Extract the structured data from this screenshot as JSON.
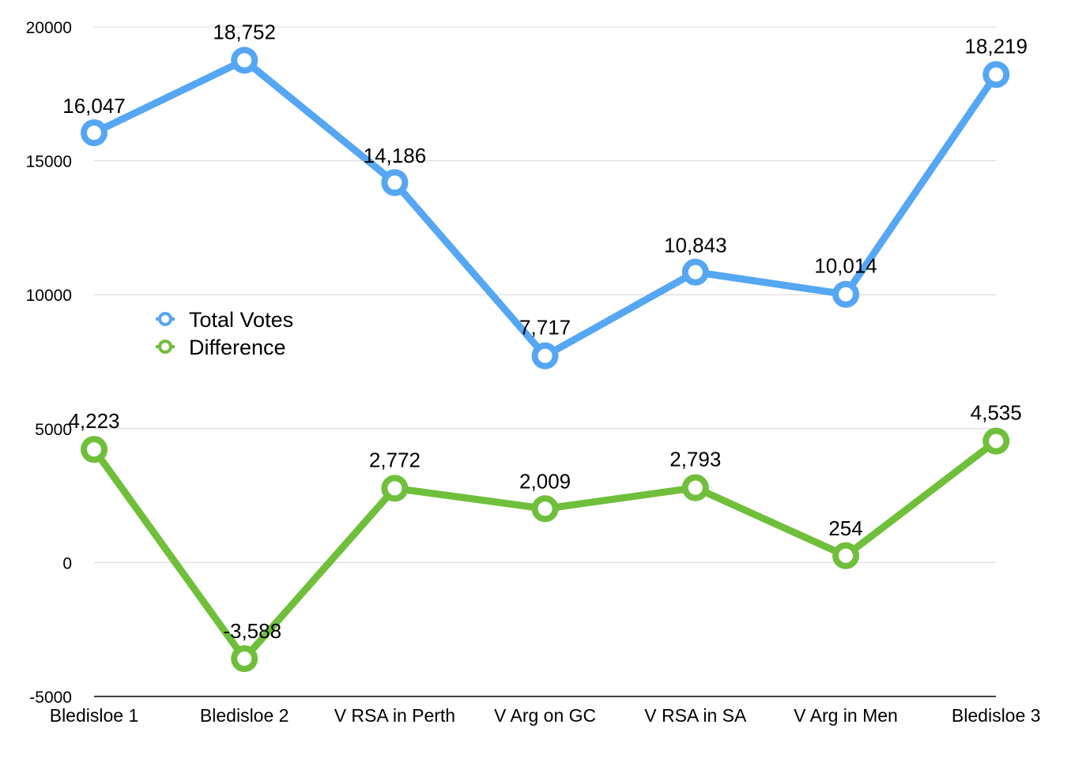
{
  "chart_data": {
    "type": "line",
    "categories": [
      "Bledisloe 1",
      "Bledisloe 2",
      "V RSA in Perth",
      "V Arg on GC",
      "V RSA in SA",
      "V Arg in Men",
      "Bledisloe 3"
    ],
    "series": [
      {
        "name": "Total Votes",
        "color": "#55a6f3",
        "values": [
          16047,
          18752,
          14186,
          7717,
          10843,
          10014,
          18219
        ],
        "labels": [
          "16,047",
          "18,752",
          "14,186",
          "7,717",
          "10,843",
          "10,014",
          "18,219"
        ]
      },
      {
        "name": "Difference",
        "color": "#6fbf3b",
        "values": [
          4223,
          -3588,
          2772,
          2009,
          2793,
          254,
          4535
        ],
        "labels": [
          "4,223",
          "-3,588",
          "2,772",
          "2,009",
          "2,793",
          "254",
          "4,535"
        ]
      }
    ],
    "ylim": [
      -5000,
      20000
    ],
    "yticks": [
      "-5000",
      "0",
      "5000",
      "10000",
      "15000",
      "20000"
    ],
    "grid": true,
    "legend": "center-left",
    "title": "",
    "xlabel": "",
    "ylabel": ""
  }
}
